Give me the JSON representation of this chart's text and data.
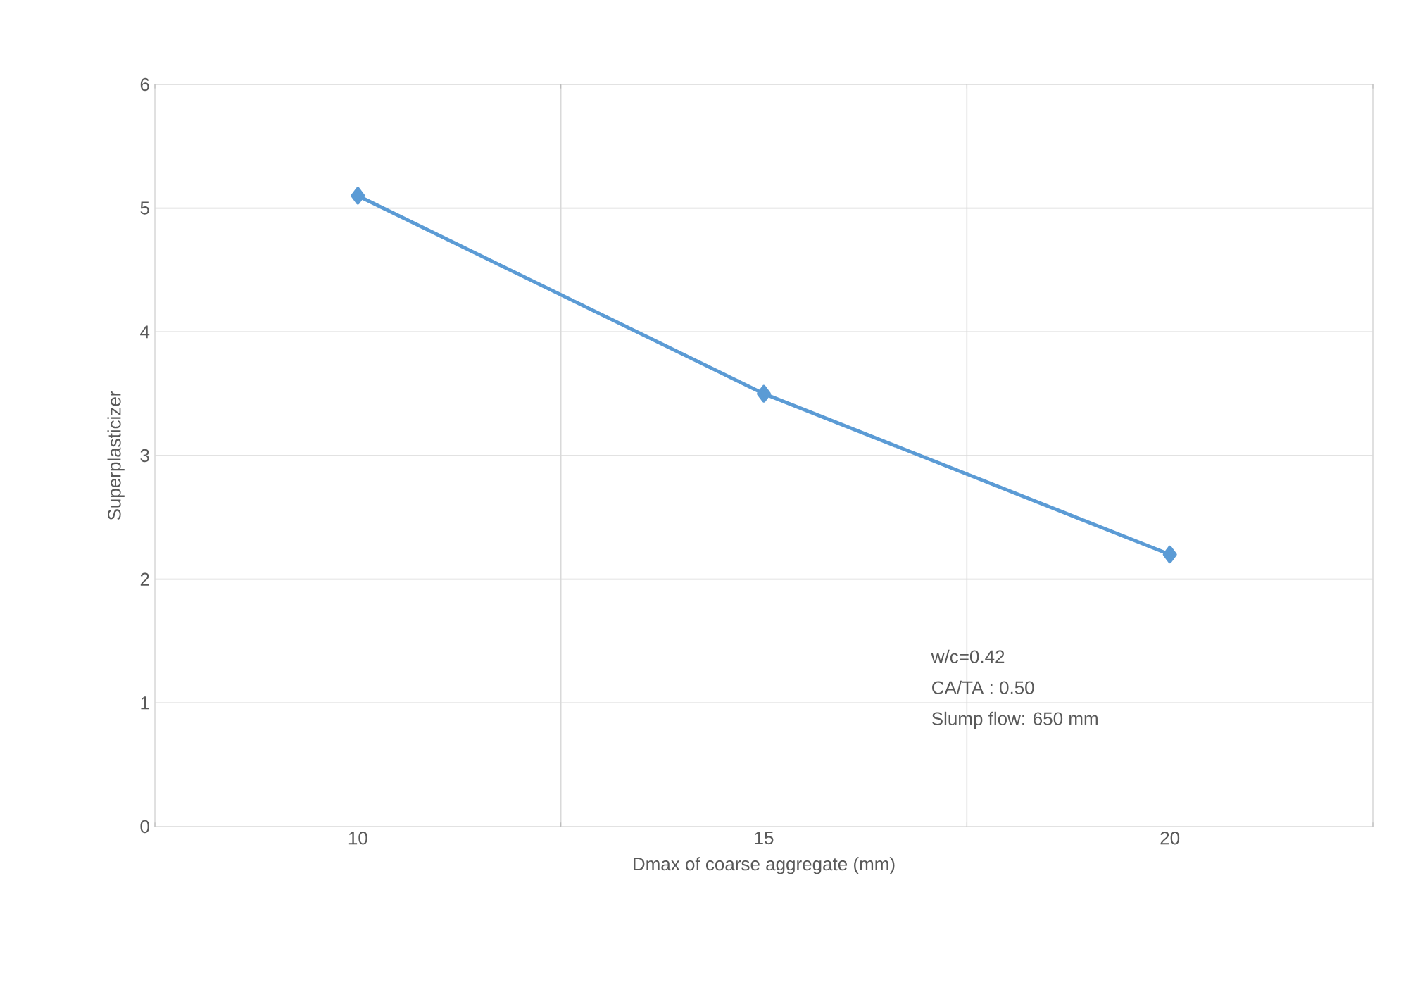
{
  "chart_data": {
    "type": "line",
    "xlabel": "Dmax of coarse aggregate (mm)",
    "ylabel": "Superplasticizer",
    "categories": [
      "10",
      "15",
      "20"
    ],
    "series": [
      {
        "color": "#5b9bd5",
        "values": [
          5.1,
          3.5,
          2.2
        ]
      }
    ],
    "ylim": [
      0,
      6
    ],
    "yticks": [
      0,
      1,
      2,
      3,
      4,
      5,
      6
    ],
    "grid": true,
    "marker": "diamond",
    "line_style": "solid",
    "annotations": [
      "w/c=0.42",
      "CA/TA : 0.50",
      "Slump flow: 650 mm"
    ]
  }
}
